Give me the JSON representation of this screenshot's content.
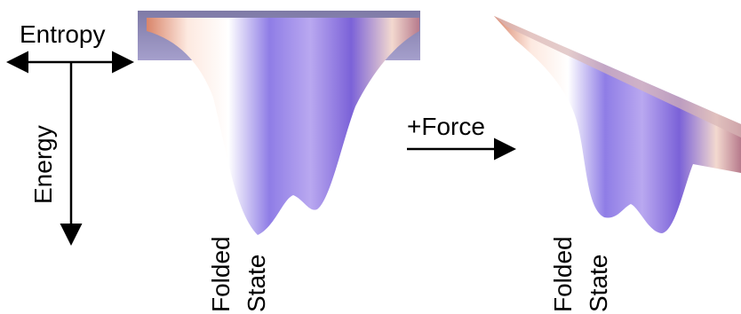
{
  "axes": {
    "horizontal": "Entropy",
    "vertical": "Energy"
  },
  "transition": {
    "label": "+Force"
  },
  "landscapes": [
    {
      "label": [
        "Folded",
        "State"
      ]
    },
    {
      "label": [
        "Folded",
        "State"
      ]
    }
  ]
}
